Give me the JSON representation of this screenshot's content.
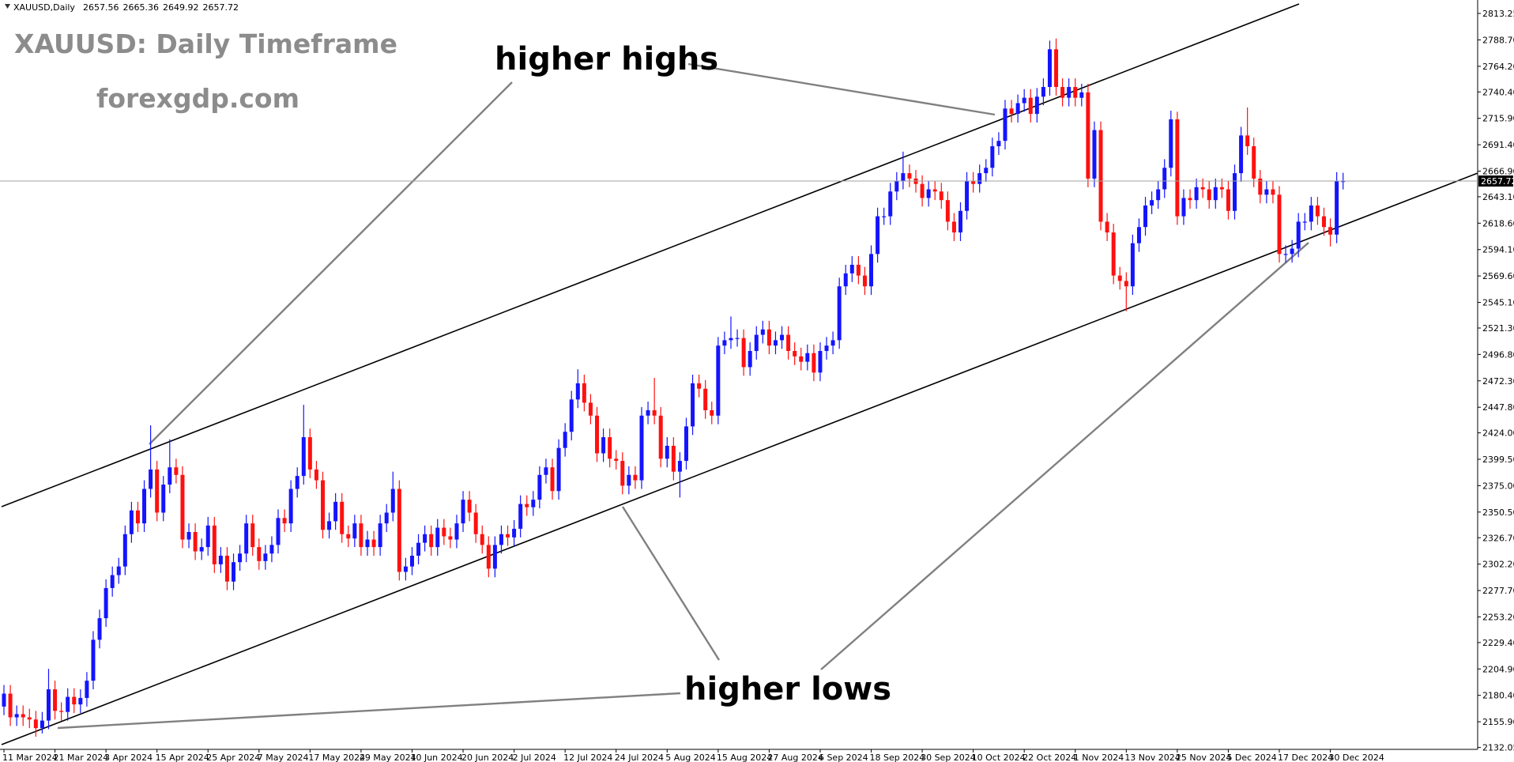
{
  "chart_data": {
    "type": "candlestick",
    "symbol": "XAUUSD,Daily",
    "title": "XAUUSD: Daily Timeframe",
    "subtitle": "forexgdp.com",
    "annotations": [
      "higher highs",
      "higher lows"
    ],
    "up_color": "#1414ff",
    "down_color": "#ff1010",
    "ylim": [
      2132.05,
      2813.25
    ],
    "yticks": [
      2813.25,
      {
        "value": 2788.7,
        "label": "2788.70"
      },
      {
        "value": 2764.2,
        "label": "2764.20"
      },
      {
        "value": 2740.4,
        "label": "2740.40"
      },
      {
        "value": 2715.9,
        "label": "2715.90"
      },
      {
        "value": 2691.4,
        "label": "2691.40"
      },
      {
        "value": 2666.9,
        "label": "2666.90"
      },
      {
        "value": 2643.1,
        "label": "2643.10"
      },
      {
        "value": 2618.6,
        "label": "2618.60"
      },
      {
        "value": 2594.1,
        "label": "2594.10"
      },
      {
        "value": 2569.6,
        "label": "2569.60"
      },
      {
        "value": 2545.1,
        "label": "2545.10"
      },
      {
        "value": 2521.3,
        "label": "2521.30"
      },
      {
        "value": 2496.8,
        "label": "2496.80"
      },
      {
        "value": 2472.3,
        "label": "2472.30"
      },
      {
        "value": 2447.8,
        "label": "2447.80"
      },
      {
        "value": 2424,
        "label": "2424.00"
      },
      {
        "value": 2399.5,
        "label": "2399.50"
      },
      {
        "value": 2375,
        "label": "2375.00"
      },
      {
        "value": 2350.5,
        "label": "2350.50"
      },
      {
        "value": 2326.7,
        "label": "2326.70"
      },
      {
        "value": 2302.2,
        "label": "2302.20"
      },
      {
        "value": 2277.7,
        "label": "2277.70"
      },
      {
        "value": 2253.2,
        "label": "2253.20"
      },
      {
        "value": 2229.4,
        "label": "2229.40"
      },
      {
        "value": 2204.9,
        "label": "2204.90"
      },
      {
        "value": 2180.4,
        "label": "2180.40"
      },
      {
        "value": 2155.9,
        "label": "2155.90"
      },
      2132.05
    ],
    "categories": [
      "11 Mar 2024",
      null,
      null,
      null,
      null,
      null,
      null,
      null,
      "21 Mar 2024",
      null,
      null,
      null,
      null,
      null,
      null,
      null,
      "3 Apr 2024",
      null,
      null,
      null,
      null,
      null,
      null,
      null,
      "15 Apr 2024",
      null,
      null,
      null,
      null,
      null,
      null,
      null,
      "25 Apr 2024",
      null,
      null,
      null,
      null,
      null,
      null,
      null,
      "7 May 2024",
      null,
      null,
      null,
      null,
      null,
      null,
      null,
      "17 May 2024",
      null,
      null,
      null,
      null,
      null,
      null,
      null,
      "29 May 2024",
      null,
      null,
      null,
      null,
      null,
      null,
      null,
      "10 Jun 2024",
      null,
      null,
      null,
      null,
      null,
      null,
      null,
      "20 Jun 2024",
      null,
      null,
      null,
      null,
      null,
      null,
      null,
      "2 Jul 2024",
      null,
      null,
      null,
      null,
      null,
      null,
      null,
      "12 Jul 2024",
      null,
      null,
      null,
      null,
      null,
      null,
      null,
      "24 Jul 2024",
      null,
      null,
      null,
      null,
      null,
      null,
      null,
      "5 Aug 2024",
      null,
      null,
      null,
      null,
      null,
      null,
      null,
      "15 Aug 2024",
      null,
      null,
      null,
      null,
      null,
      null,
      null,
      "27 Aug 2024",
      null,
      null,
      null,
      null,
      null,
      null,
      null,
      "6 Sep 2024",
      null,
      null,
      null,
      null,
      null,
      null,
      null,
      "18 Sep 2024",
      null,
      null,
      null,
      null,
      null,
      null,
      null,
      "30 Sep 2024",
      null,
      null,
      null,
      null,
      null,
      null,
      null,
      "10 Oct 2024",
      null,
      null,
      null,
      null,
      null,
      null,
      null,
      "22 Oct 2024",
      null,
      null,
      null,
      null,
      null,
      null,
      null,
      "1 Nov 2024",
      null,
      null,
      null,
      null,
      null,
      null,
      null,
      "13 Nov 2024",
      null,
      null,
      null,
      null,
      null,
      null,
      null,
      "25 Nov 2024",
      null,
      null,
      null,
      null,
      null,
      null,
      null,
      "5 Dec 2024",
      null,
      null,
      null,
      null,
      null,
      null,
      null,
      "17 Dec 2024",
      null,
      null,
      null,
      null,
      null,
      null,
      null,
      "30 Dec 2024",
      null,
      null
    ],
    "open": [
      2170,
      2182,
      2160,
      2163,
      2160,
      2158,
      2150,
      2157,
      2186,
      2166,
      2165,
      2179,
      2172,
      2178,
      2194,
      2232,
      2252,
      2280,
      2292,
      2300,
      2330,
      2352,
      2340,
      2372,
      2390,
      2350,
      2376,
      2392,
      2385,
      2325,
      2332,
      2314,
      2318,
      2338,
      2302,
      2310,
      2286,
      2304,
      2312,
      2340,
      2318,
      2305,
      2312,
      2320,
      2345,
      2340,
      2372,
      2384,
      2420,
      2390,
      2380,
      2334,
      2342,
      2360,
      2330,
      2326,
      2340,
      2318,
      2325,
      2318,
      2340,
      2350,
      2372,
      2295,
      2300,
      2310,
      2322,
      2330,
      2318,
      2336,
      2328,
      2325,
      2340,
      2362,
      2350,
      2330,
      2320,
      2298,
      2320,
      2330,
      2327,
      2335,
      2358,
      2355,
      2362,
      2385,
      2392,
      2370,
      2410,
      2425,
      2455,
      2470,
      2452,
      2440,
      2405,
      2420,
      2400,
      2398,
      2375,
      2385,
      2380,
      2440,
      2445,
      2440,
      2400,
      2412,
      2388,
      2398,
      2430,
      2470,
      2465,
      2445,
      2440,
      2505,
      2510,
      2512,
      2512,
      2485,
      2500,
      2515,
      2520,
      2505,
      2510,
      2515,
      2500,
      2495,
      2490,
      2498,
      2480,
      2500,
      2505,
      2510,
      2560,
      2572,
      2580,
      2570,
      2560,
      2590,
      2625,
      2625,
      2648,
      2658,
      2665,
      2660,
      2655,
      2642,
      2650,
      2648,
      2640,
      2620,
      2610,
      2630,
      2658,
      2655,
      2665,
      2670,
      2690,
      2695,
      2725,
      2720,
      2730,
      2735,
      2720,
      2736,
      2745,
      2780,
      2745,
      2735,
      2745,
      2735,
      2740,
      2660,
      2705,
      2620,
      2610,
      2570,
      2565,
      2560,
      2600,
      2615,
      2635,
      2640,
      2650,
      2670,
      2715,
      2625,
      2642,
      2640,
      2652,
      2650,
      2640,
      2652,
      2650,
      2630,
      2665,
      2700,
      2690,
      2660,
      2645,
      2650,
      2645,
      2590,
      2590,
      2595,
      2620,
      2620,
      2635,
      2625,
      2615,
      2608,
      2657.56
    ],
    "high": [
      2190,
      2190,
      2171,
      2171,
      2168,
      2166,
      2165,
      2205,
      2194,
      2174,
      2187,
      2187,
      2186,
      2202,
      2240,
      2260,
      2288,
      2300,
      2308,
      2338,
      2360,
      2360,
      2380,
      2431,
      2398,
      2384,
      2418,
      2400,
      2393,
      2340,
      2340,
      2326,
      2346,
      2346,
      2318,
      2318,
      2312,
      2320,
      2348,
      2348,
      2326,
      2320,
      2328,
      2353,
      2353,
      2380,
      2392,
      2450,
      2428,
      2398,
      2388,
      2350,
      2368,
      2368,
      2338,
      2348,
      2348,
      2333,
      2333,
      2348,
      2358,
      2388,
      2380,
      2308,
      2318,
      2330,
      2338,
      2338,
      2344,
      2344,
      2336,
      2348,
      2370,
      2370,
      2358,
      2338,
      2328,
      2328,
      2338,
      2338,
      2343,
      2366,
      2366,
      2370,
      2393,
      2400,
      2400,
      2418,
      2433,
      2463,
      2483,
      2478,
      2460,
      2448,
      2428,
      2428,
      2408,
      2406,
      2393,
      2393,
      2448,
      2453,
      2475,
      2448,
      2420,
      2420,
      2406,
      2438,
      2478,
      2478,
      2473,
      2453,
      2513,
      2518,
      2532,
      2520,
      2520,
      2508,
      2523,
      2528,
      2528,
      2518,
      2523,
      2523,
      2508,
      2503,
      2506,
      2506,
      2508,
      2513,
      2518,
      2568,
      2580,
      2588,
      2588,
      2578,
      2598,
      2633,
      2633,
      2656,
      2666,
      2685,
      2673,
      2668,
      2663,
      2658,
      2658,
      2656,
      2648,
      2628,
      2638,
      2666,
      2666,
      2673,
      2678,
      2698,
      2703,
      2733,
      2733,
      2738,
      2743,
      2743,
      2744,
      2753,
      2788,
      2790,
      2753,
      2753,
      2753,
      2748,
      2748,
      2713,
      2713,
      2628,
      2618,
      2578,
      2573,
      2608,
      2623,
      2643,
      2648,
      2658,
      2678,
      2723,
      2722,
      2650,
      2650,
      2660,
      2660,
      2658,
      2660,
      2660,
      2658,
      2673,
      2708,
      2726,
      2698,
      2668,
      2658,
      2658,
      2653,
      2598,
      2603,
      2628,
      2628,
      2643,
      2643,
      2633,
      2623,
      2666,
      2665.36
    ],
    "low": [
      2162,
      2152,
      2152,
      2152,
      2150,
      2142,
      2145,
      2149,
      2158,
      2157,
      2157,
      2164,
      2164,
      2170,
      2186,
      2224,
      2244,
      2272,
      2284,
      2292,
      2322,
      2332,
      2332,
      2364,
      2342,
      2342,
      2368,
      2377,
      2317,
      2317,
      2306,
      2306,
      2310,
      2294,
      2294,
      2278,
      2278,
      2296,
      2304,
      2310,
      2297,
      2297,
      2304,
      2312,
      2332,
      2332,
      2364,
      2376,
      2382,
      2372,
      2326,
      2326,
      2334,
      2322,
      2318,
      2318,
      2310,
      2310,
      2310,
      2310,
      2332,
      2342,
      2287,
      2287,
      2292,
      2302,
      2314,
      2310,
      2310,
      2320,
      2317,
      2317,
      2332,
      2342,
      2322,
      2312,
      2290,
      2290,
      2312,
      2319,
      2319,
      2327,
      2347,
      2347,
      2354,
      2377,
      2362,
      2362,
      2402,
      2417,
      2447,
      2444,
      2432,
      2397,
      2397,
      2392,
      2390,
      2367,
      2367,
      2372,
      2372,
      2432,
      2432,
      2392,
      2392,
      2380,
      2364,
      2390,
      2422,
      2457,
      2437,
      2432,
      2432,
      2497,
      2502,
      2504,
      2477,
      2477,
      2492,
      2507,
      2497,
      2497,
      2502,
      2492,
      2487,
      2482,
      2482,
      2472,
      2472,
      2492,
      2497,
      2502,
      2552,
      2564,
      2562,
      2552,
      2552,
      2582,
      2617,
      2617,
      2640,
      2650,
      2652,
      2647,
      2634,
      2634,
      2640,
      2632,
      2612,
      2602,
      2602,
      2622,
      2647,
      2647,
      2657,
      2662,
      2682,
      2687,
      2712,
      2712,
      2722,
      2712,
      2712,
      2728,
      2737,
      2737,
      2727,
      2727,
      2727,
      2727,
      2652,
      2652,
      2612,
      2602,
      2562,
      2557,
      2537,
      2552,
      2592,
      2607,
      2627,
      2632,
      2642,
      2662,
      2617,
      2617,
      2632,
      2632,
      2642,
      2632,
      2632,
      2642,
      2622,
      2622,
      2657,
      2682,
      2652,
      2637,
      2637,
      2637,
      2582,
      2582,
      2582,
      2587,
      2612,
      2612,
      2617,
      2607,
      2597,
      2600,
      2649.92
    ],
    "close": [
      2182,
      2160,
      2163,
      2160,
      2158,
      2150,
      2157,
      2186,
      2166,
      2165,
      2179,
      2172,
      2178,
      2194,
      2232,
      2252,
      2280,
      2292,
      2300,
      2330,
      2352,
      2340,
      2372,
      2390,
      2350,
      2376,
      2392,
      2385,
      2325,
      2332,
      2314,
      2318,
      2338,
      2302,
      2310,
      2286,
      2304,
      2312,
      2340,
      2318,
      2305,
      2312,
      2320,
      2345,
      2340,
      2372,
      2384,
      2420,
      2390,
      2380,
      2334,
      2342,
      2360,
      2330,
      2326,
      2340,
      2318,
      2325,
      2318,
      2340,
      2350,
      2372,
      2295,
      2300,
      2310,
      2322,
      2330,
      2318,
      2336,
      2328,
      2325,
      2340,
      2362,
      2350,
      2330,
      2320,
      2298,
      2320,
      2330,
      2327,
      2335,
      2358,
      2355,
      2362,
      2385,
      2392,
      2370,
      2410,
      2425,
      2455,
      2470,
      2452,
      2440,
      2405,
      2420,
      2400,
      2398,
      2375,
      2385,
      2380,
      2440,
      2445,
      2440,
      2400,
      2412,
      2388,
      2398,
      2430,
      2470,
      2465,
      2445,
      2440,
      2505,
      2510,
      2512,
      2512,
      2485,
      2500,
      2515,
      2520,
      2505,
      2510,
      2515,
      2500,
      2495,
      2490,
      2498,
      2480,
      2500,
      2505,
      2510,
      2560,
      2572,
      2580,
      2570,
      2560,
      2590,
      2625,
      2625,
      2648,
      2658,
      2665,
      2660,
      2655,
      2642,
      2650,
      2648,
      2640,
      2620,
      2610,
      2630,
      2658,
      2655,
      2665,
      2670,
      2690,
      2695,
      2725,
      2720,
      2730,
      2735,
      2720,
      2736,
      2745,
      2780,
      2745,
      2735,
      2745,
      2735,
      2740,
      2660,
      2705,
      2620,
      2610,
      2570,
      2565,
      2560,
      2600,
      2615,
      2635,
      2640,
      2650,
      2670,
      2715,
      2625,
      2642,
      2640,
      2652,
      2650,
      2640,
      2652,
      2650,
      2630,
      2665,
      2700,
      2690,
      2660,
      2645,
      2650,
      2645,
      2590,
      2590,
      2595,
      2620,
      2620,
      2635,
      2625,
      2615,
      2608,
      2658,
      2657.72
    ]
  }
}
